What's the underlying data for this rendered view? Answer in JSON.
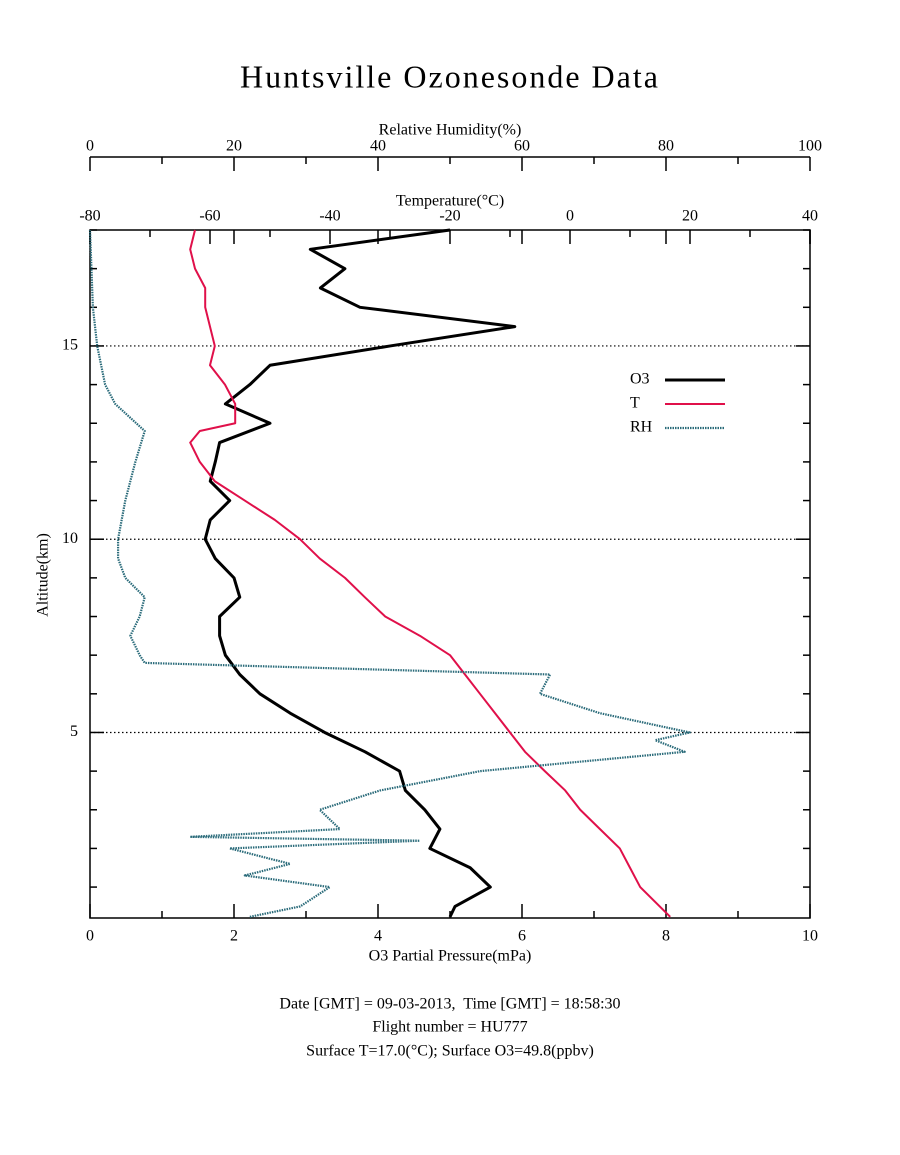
{
  "chart_data": {
    "type": "line",
    "title": "Huntsville Ozonesonde Data",
    "ylabel": "Altitude(km)",
    "ylim": [
      0.2,
      18
    ],
    "yticks": [
      5,
      10,
      15
    ],
    "yminor": [
      1,
      2,
      3,
      4,
      6,
      7,
      8,
      9,
      11,
      12,
      13,
      14,
      16,
      17,
      18
    ],
    "grid": true,
    "legend": "upper right",
    "xaxis": {
      "label": "O3 Partial Pressure(mPa)",
      "lim": [
        0,
        10
      ],
      "ticks": [
        0,
        2,
        4,
        6,
        8,
        10
      ],
      "minor": [
        1,
        3,
        5,
        7,
        9
      ]
    },
    "x2axis": {
      "label": "Temperature(°C)",
      "lim": [
        -80,
        40
      ],
      "ticks": [
        -80,
        -60,
        -40,
        -20,
        0,
        20,
        40
      ],
      "minor": [
        -70,
        -50,
        -30,
        -10,
        10,
        30
      ]
    },
    "x3axis": {
      "label": "Relative Humidity(%)",
      "lim": [
        0,
        100
      ],
      "ticks": [
        0,
        20,
        40,
        60,
        80,
        100
      ],
      "minor": [
        10,
        30,
        50,
        70,
        90
      ]
    },
    "series": [
      {
        "name": "O3",
        "color": "#000000",
        "axis": "x",
        "altitude": [
          0.23,
          0.5,
          1.0,
          1.5,
          2.0,
          2.5,
          3.0,
          3.5,
          4.0,
          4.5,
          5.0,
          5.5,
          6.0,
          6.5,
          7.0,
          7.5,
          8.0,
          8.5,
          9.0,
          9.5,
          10.0,
          10.5,
          11.0,
          11.5,
          12.0,
          12.5,
          13.0,
          13.5,
          14.0,
          14.5,
          15.0,
          15.5,
          16.0,
          16.5,
          17.0,
          17.5,
          18.0
        ],
        "values": [
          5.0,
          5.07,
          5.56,
          5.28,
          4.72,
          4.86,
          4.65,
          4.38,
          4.3,
          3.82,
          3.26,
          2.78,
          2.36,
          2.08,
          1.88,
          1.8,
          1.8,
          2.08,
          2.0,
          1.74,
          1.6,
          1.67,
          1.94,
          1.67,
          1.74,
          1.8,
          2.5,
          1.88,
          2.22,
          2.5,
          4.17,
          5.9,
          3.75,
          3.2,
          3.54,
          3.06,
          5.0
        ]
      },
      {
        "name": "T",
        "color": "#e0104a",
        "axis": "x2",
        "altitude": [
          0.23,
          1.0,
          1.5,
          2.0,
          2.5,
          3.0,
          3.5,
          4.0,
          4.5,
          5.0,
          5.5,
          6.0,
          6.5,
          7.0,
          7.5,
          8.0,
          8.5,
          9.0,
          9.5,
          10.0,
          10.5,
          11.0,
          11.5,
          12.0,
          12.5,
          12.8,
          13.0,
          13.5,
          14.0,
          14.5,
          15.0,
          15.5,
          16.0,
          16.5,
          17.0,
          17.5,
          18.0
        ],
        "values": [
          16.7,
          11.7,
          10,
          8.3,
          5,
          1.7,
          -0.8,
          -4.2,
          -7.5,
          -10,
          -12.5,
          -15,
          -17.5,
          -20,
          -25,
          -30.8,
          -34.2,
          -37.5,
          -41.7,
          -45,
          -49.2,
          -54.2,
          -59.2,
          -61.7,
          -63.3,
          -61.7,
          -55.8,
          -55.8,
          -57.5,
          -60,
          -59.2,
          -60,
          -60.8,
          -60.8,
          -62.5,
          -63.3,
          -62.5
        ]
      },
      {
        "name": "RH",
        "color": "#2a6b7a",
        "axis": "x3",
        "altitude": [
          0.23,
          0.5,
          1.0,
          1.3,
          1.6,
          2.0,
          2.2,
          2.3,
          2.5,
          3.0,
          3.5,
          4.0,
          4.5,
          4.8,
          5.0,
          5.5,
          6.0,
          6.5,
          6.8,
          7.0,
          7.5,
          8.0,
          8.5,
          9.0,
          9.5,
          10.0,
          11.0,
          12.0,
          12.8,
          13.5,
          14.0,
          15.0,
          16.0,
          18.0
        ],
        "values": [
          22.2,
          29.2,
          33.3,
          21.5,
          27.8,
          19.4,
          45.8,
          13.9,
          34.7,
          31.9,
          40.3,
          54.2,
          82.6,
          78.5,
          83.3,
          70.8,
          62.5,
          63.9,
          7.6,
          6.9,
          5.6,
          6.9,
          7.6,
          4.9,
          3.9,
          3.9,
          4.9,
          6.3,
          7.6,
          3.5,
          2.1,
          1.0,
          0.4,
          0
        ]
      }
    ],
    "notes": [
      "Date [GMT] = 09-03-2013,  Time [GMT] = 18:58:30",
      "Flight number = HU777",
      "Surface T=17.0(°C); Surface O3=49.8(ppbv)"
    ]
  }
}
